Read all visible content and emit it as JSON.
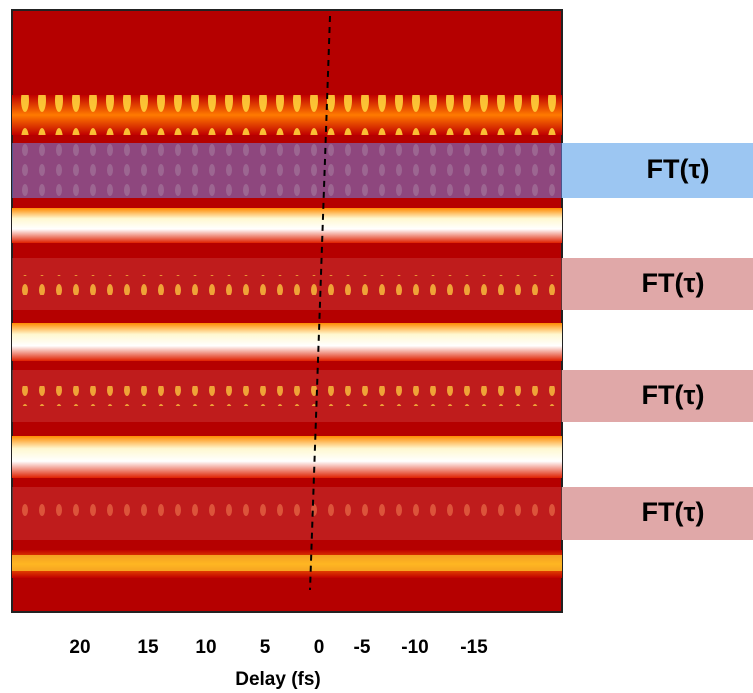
{
  "axis": {
    "ticks": [
      "20",
      "15",
      "10",
      "5",
      "0",
      "-5",
      "-10",
      "-15"
    ],
    "label": "Delay (fs)"
  },
  "labels": [
    "FT(τ)",
    "FT(τ)",
    "FT(τ)",
    "FT(τ)"
  ]
}
